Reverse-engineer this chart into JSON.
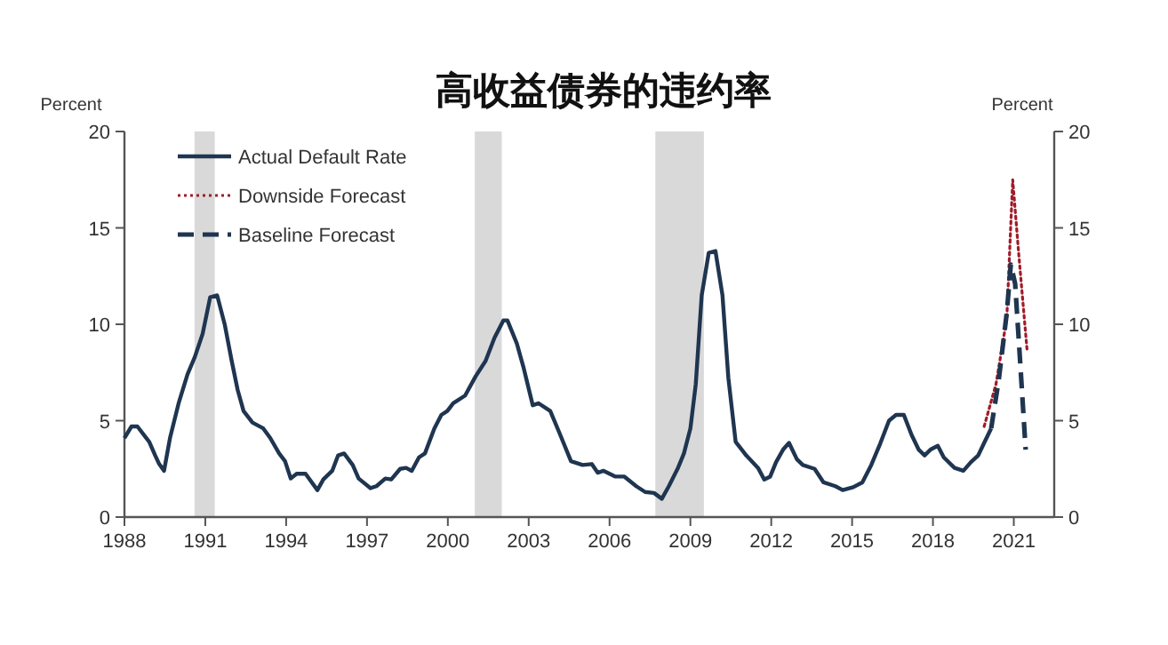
{
  "chart_data": {
    "type": "line",
    "title": "高收益债券的违约率",
    "ylabel": "Percent",
    "y2label": "Percent",
    "xlim": [
      1988,
      2022.5
    ],
    "xticks": [
      1988,
      1991,
      1994,
      1997,
      2000,
      2003,
      2006,
      2009,
      2012,
      2015,
      2018,
      2021
    ],
    "ylim": [
      0,
      20
    ],
    "yticks": [
      0,
      5,
      10,
      15,
      20
    ],
    "y2lim": [
      0,
      20
    ],
    "y2ticks": [
      0,
      5,
      10,
      15,
      20
    ],
    "legend": "top left",
    "grid": false,
    "bands": [
      {
        "axis": "x",
        "from": 1990.6,
        "to": 1991.35,
        "color": "#d9d9d9"
      },
      {
        "axis": "x",
        "from": 2001.0,
        "to": 2002.0,
        "color": "#d9d9d9"
      },
      {
        "axis": "x",
        "from": 2007.7,
        "to": 2009.5,
        "color": "#d9d9d9"
      }
    ],
    "series": [
      {
        "name": "Actual Default Rate",
        "color": "#1f3550",
        "line_style": "solid",
        "x": [
          1988.0,
          1988.26,
          1988.48,
          1988.92,
          1989.14,
          1989.29,
          1989.47,
          1989.69,
          1990.01,
          1990.34,
          1990.61,
          1990.9,
          1991.18,
          1991.44,
          1991.72,
          1991.98,
          1992.2,
          1992.42,
          1992.75,
          1993.15,
          1993.41,
          1993.74,
          1993.96,
          1994.17,
          1994.39,
          1994.72,
          1995.16,
          1995.38,
          1995.71,
          1995.93,
          1996.15,
          1996.47,
          1996.69,
          1997.13,
          1997.35,
          1997.68,
          1997.9,
          1998.23,
          1998.45,
          1998.66,
          1998.93,
          1999.15,
          1999.5,
          1999.76,
          1999.98,
          2000.2,
          2000.64,
          2001.03,
          2001.4,
          2001.73,
          2002.06,
          2002.21,
          2002.56,
          2002.82,
          2003.15,
          2003.37,
          2003.8,
          2004.13,
          2004.57,
          2005.0,
          2005.34,
          2005.56,
          2005.78,
          2006.22,
          2006.55,
          2006.99,
          2007.32,
          2007.65,
          2007.94,
          2008.2,
          2008.54,
          2008.76,
          2009.0,
          2009.2,
          2009.42,
          2009.68,
          2009.93,
          2010.19,
          2010.41,
          2010.68,
          2011.07,
          2011.51,
          2011.74,
          2011.96,
          2012.18,
          2012.44,
          2012.66,
          2012.95,
          2013.17,
          2013.61,
          2013.94,
          2014.38,
          2014.65,
          2015.04,
          2015.38,
          2015.71,
          2016.04,
          2016.37,
          2016.63,
          2016.92,
          2017.21,
          2017.47,
          2017.69,
          2017.91,
          2018.18,
          2018.4,
          2018.8,
          2019.13,
          2019.41,
          2019.68,
          2019.9,
          2020.16
        ],
        "values": [
          4.1,
          4.7,
          4.7,
          3.9,
          3.2,
          2.75,
          2.4,
          4.1,
          5.9,
          7.4,
          8.3,
          9.5,
          11.4,
          11.5,
          10.0,
          8.1,
          6.6,
          5.5,
          4.9,
          4.6,
          4.1,
          3.3,
          2.9,
          2.0,
          2.25,
          2.25,
          1.4,
          1.95,
          2.4,
          3.2,
          3.3,
          2.7,
          2.0,
          1.5,
          1.6,
          2.0,
          1.95,
          2.5,
          2.55,
          2.4,
          3.1,
          3.3,
          4.6,
          5.3,
          5.5,
          5.9,
          6.3,
          7.3,
          8.1,
          9.3,
          10.2,
          10.2,
          9.0,
          7.7,
          5.8,
          5.9,
          5.5,
          4.4,
          2.9,
          2.7,
          2.75,
          2.3,
          2.4,
          2.1,
          2.1,
          1.6,
          1.3,
          1.25,
          0.95,
          1.6,
          2.55,
          3.3,
          4.6,
          6.9,
          11.5,
          13.7,
          13.8,
          11.5,
          7.2,
          3.9,
          3.2,
          2.55,
          1.95,
          2.1,
          2.85,
          3.5,
          3.85,
          3.0,
          2.7,
          2.5,
          1.8,
          1.6,
          1.4,
          1.55,
          1.8,
          2.7,
          3.8,
          5.0,
          5.3,
          5.3,
          4.25,
          3.5,
          3.2,
          3.5,
          3.7,
          3.1,
          2.55,
          2.4,
          2.85,
          3.2,
          3.85,
          4.6
        ]
      },
      {
        "name": "Downside Forecast",
        "color": "#a01c2a",
        "line_style": "dotted",
        "x": [
          2019.9,
          2020.34,
          2020.74,
          2020.96,
          2021.18,
          2021.49
        ],
        "values": [
          4.7,
          6.9,
          10.3,
          17.5,
          13.7,
          8.7
        ]
      },
      {
        "name": "Baseline Forecast",
        "color": "#1f3550",
        "line_style": "dashed",
        "x": [
          2020.16,
          2020.45,
          2020.74,
          2020.89,
          2021.05,
          2021.22,
          2021.44
        ],
        "values": [
          4.6,
          7.2,
          10.6,
          13.1,
          12.1,
          8.4,
          3.5
        ]
      }
    ]
  }
}
